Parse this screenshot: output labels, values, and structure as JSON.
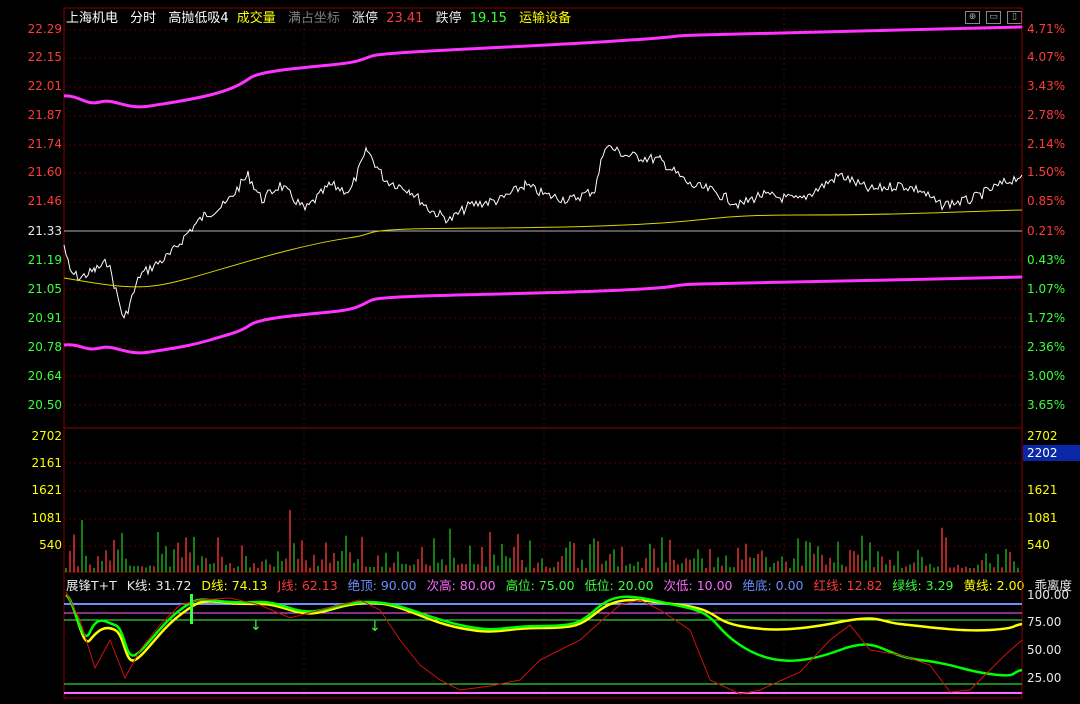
{
  "header": {
    "stock_name": "上海机电",
    "mode": "分时",
    "indicator": "高抛低吸4",
    "volume_label": "成交量",
    "coord_label": "满占坐标",
    "limit_up_label": "涨停",
    "limit_up_value": "23.41",
    "limit_down_label": "跌停",
    "limit_down_value": "19.15",
    "sector": "运输设备"
  },
  "window_buttons": [
    "settings-icon",
    "minimize-icon",
    "restore-icon"
  ],
  "price_axis": {
    "left": [
      "22.29",
      "22.15",
      "22.01",
      "21.87",
      "21.74",
      "21.60",
      "21.46",
      "21.33",
      "21.19",
      "21.05",
      "20.91",
      "20.78",
      "20.64",
      "20.50"
    ],
    "right": [
      "4.71%",
      "4.07%",
      "3.43%",
      "2.78%",
      "2.14%",
      "1.50%",
      "0.85%",
      "0.21%",
      "0.43%",
      "1.07%",
      "1.72%",
      "2.36%",
      "3.00%",
      "3.65%"
    ]
  },
  "volume_axis": {
    "left": [
      "2702",
      "2161",
      "1621",
      "1081",
      "540"
    ],
    "right": [
      "2702",
      "2202",
      "1621",
      "1081",
      "540"
    ],
    "highlight": "2202"
  },
  "indicator_header": [
    {
      "text": "展锋T+T",
      "color": "#e8e8e8"
    },
    {
      "text": "K线: 31.72",
      "color": "#e8e8e8"
    },
    {
      "text": "D线: 74.13",
      "color": "#ffff00"
    },
    {
      "text": "J线: 62.13",
      "color": "#ff3b3b"
    },
    {
      "text": "绝顶: 90.00",
      "color": "#6d8cff"
    },
    {
      "text": "次高: 80.00",
      "color": "#ff66ff"
    },
    {
      "text": "高位: 75.00",
      "color": "#3cff3c"
    },
    {
      "text": "低位: 20.00",
      "color": "#3cff3c"
    },
    {
      "text": "次低: 10.00",
      "color": "#ff66ff"
    },
    {
      "text": "绝底: 0.00",
      "color": "#6d8cff"
    },
    {
      "text": "红线: 12.82",
      "color": "#ff3b3b"
    },
    {
      "text": "绿线: 3.29",
      "color": "#3cff3c"
    },
    {
      "text": "黄线: 2.00",
      "color": "#ffff00"
    },
    {
      "text": "乖离度",
      "color": "#e8e8e8"
    }
  ],
  "indicator_axis": [
    "100.00",
    "75.00",
    "50.00",
    "25.00"
  ],
  "colors": {
    "up": "#ff3b3b",
    "down": "#20c020",
    "price_line": "#ffffff",
    "avg_line": "#d6d600",
    "band": "#ff33ff",
    "grid_red": "#5a0000"
  }
}
